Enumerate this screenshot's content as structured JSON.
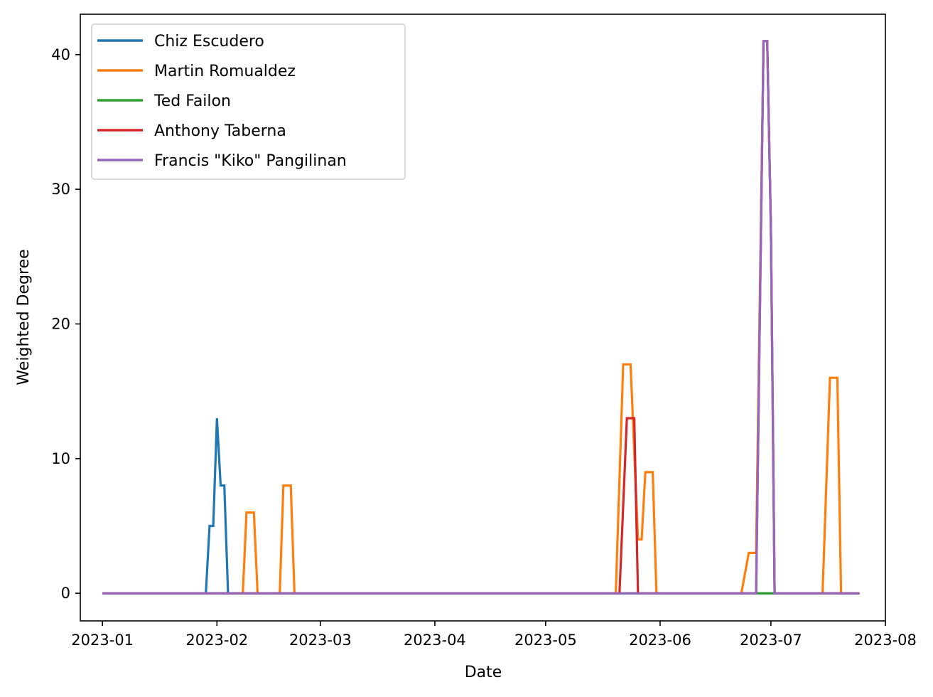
{
  "chart_data": {
    "type": "line",
    "title": "",
    "xlabel": "Date",
    "ylabel": "Weighted Degree",
    "x_start": "2023-01-01",
    "x_end": "2023-07-25",
    "xlim_days": [
      -6,
      212
    ],
    "ylim": [
      -2.05,
      43
    ],
    "x_ticks": [
      {
        "label": "2023-01",
        "day": 0
      },
      {
        "label": "2023-02",
        "day": 31
      },
      {
        "label": "2023-03",
        "day": 59
      },
      {
        "label": "2023-04",
        "day": 90
      },
      {
        "label": "2023-05",
        "day": 120
      },
      {
        "label": "2023-06",
        "day": 151
      },
      {
        "label": "2023-07",
        "day": 181
      },
      {
        "label": "2023-08",
        "day": 212
      }
    ],
    "y_ticks": [
      0,
      10,
      20,
      30,
      40
    ],
    "legend_position": "top-left",
    "series": [
      {
        "name": "Chiz Escudero",
        "color": "#1f77b4",
        "points": [
          [
            0,
            0
          ],
          [
            28,
            0
          ],
          [
            29,
            5
          ],
          [
            30,
            5
          ],
          [
            31,
            13
          ],
          [
            32,
            8
          ],
          [
            33,
            8
          ],
          [
            34,
            0
          ],
          [
            205,
            0
          ]
        ]
      },
      {
        "name": "Martin Romualdez",
        "color": "#ff7f0e",
        "points": [
          [
            0,
            0
          ],
          [
            38,
            0
          ],
          [
            39,
            6
          ],
          [
            41,
            6
          ],
          [
            42,
            0
          ],
          [
            48,
            0
          ],
          [
            49,
            8
          ],
          [
            51,
            8
          ],
          [
            52,
            0
          ],
          [
            139,
            0
          ],
          [
            141,
            17
          ],
          [
            143,
            17
          ],
          [
            145,
            4
          ],
          [
            146,
            4
          ],
          [
            147,
            9
          ],
          [
            149,
            9
          ],
          [
            150,
            0
          ],
          [
            173,
            0
          ],
          [
            175,
            3
          ],
          [
            177,
            3
          ],
          [
            179,
            41
          ],
          [
            180,
            41
          ],
          [
            181,
            27
          ],
          [
            182,
            0
          ],
          [
            195,
            0
          ],
          [
            197,
            16
          ],
          [
            199,
            16
          ],
          [
            200,
            0
          ],
          [
            205,
            0
          ]
        ]
      },
      {
        "name": "Ted Failon",
        "color": "#2ca02c",
        "points": [
          [
            0,
            0
          ],
          [
            205,
            0
          ]
        ]
      },
      {
        "name": "Anthony Taberna",
        "color": "#d62728",
        "points": [
          [
            0,
            0
          ],
          [
            140,
            0
          ],
          [
            142,
            13
          ],
          [
            144,
            13
          ],
          [
            145,
            0
          ],
          [
            177,
            0
          ],
          [
            179,
            41
          ],
          [
            180,
            41
          ],
          [
            181,
            27
          ],
          [
            182,
            0
          ],
          [
            205,
            0
          ]
        ]
      },
      {
        "name": "Francis \"Kiko\" Pangilinan",
        "color": "#9467bd",
        "points": [
          [
            0,
            0
          ],
          [
            176,
            0
          ],
          [
            177,
            0
          ],
          [
            179,
            41
          ],
          [
            180,
            41
          ],
          [
            181,
            27
          ],
          [
            182,
            0
          ],
          [
            205,
            0
          ]
        ]
      }
    ]
  }
}
